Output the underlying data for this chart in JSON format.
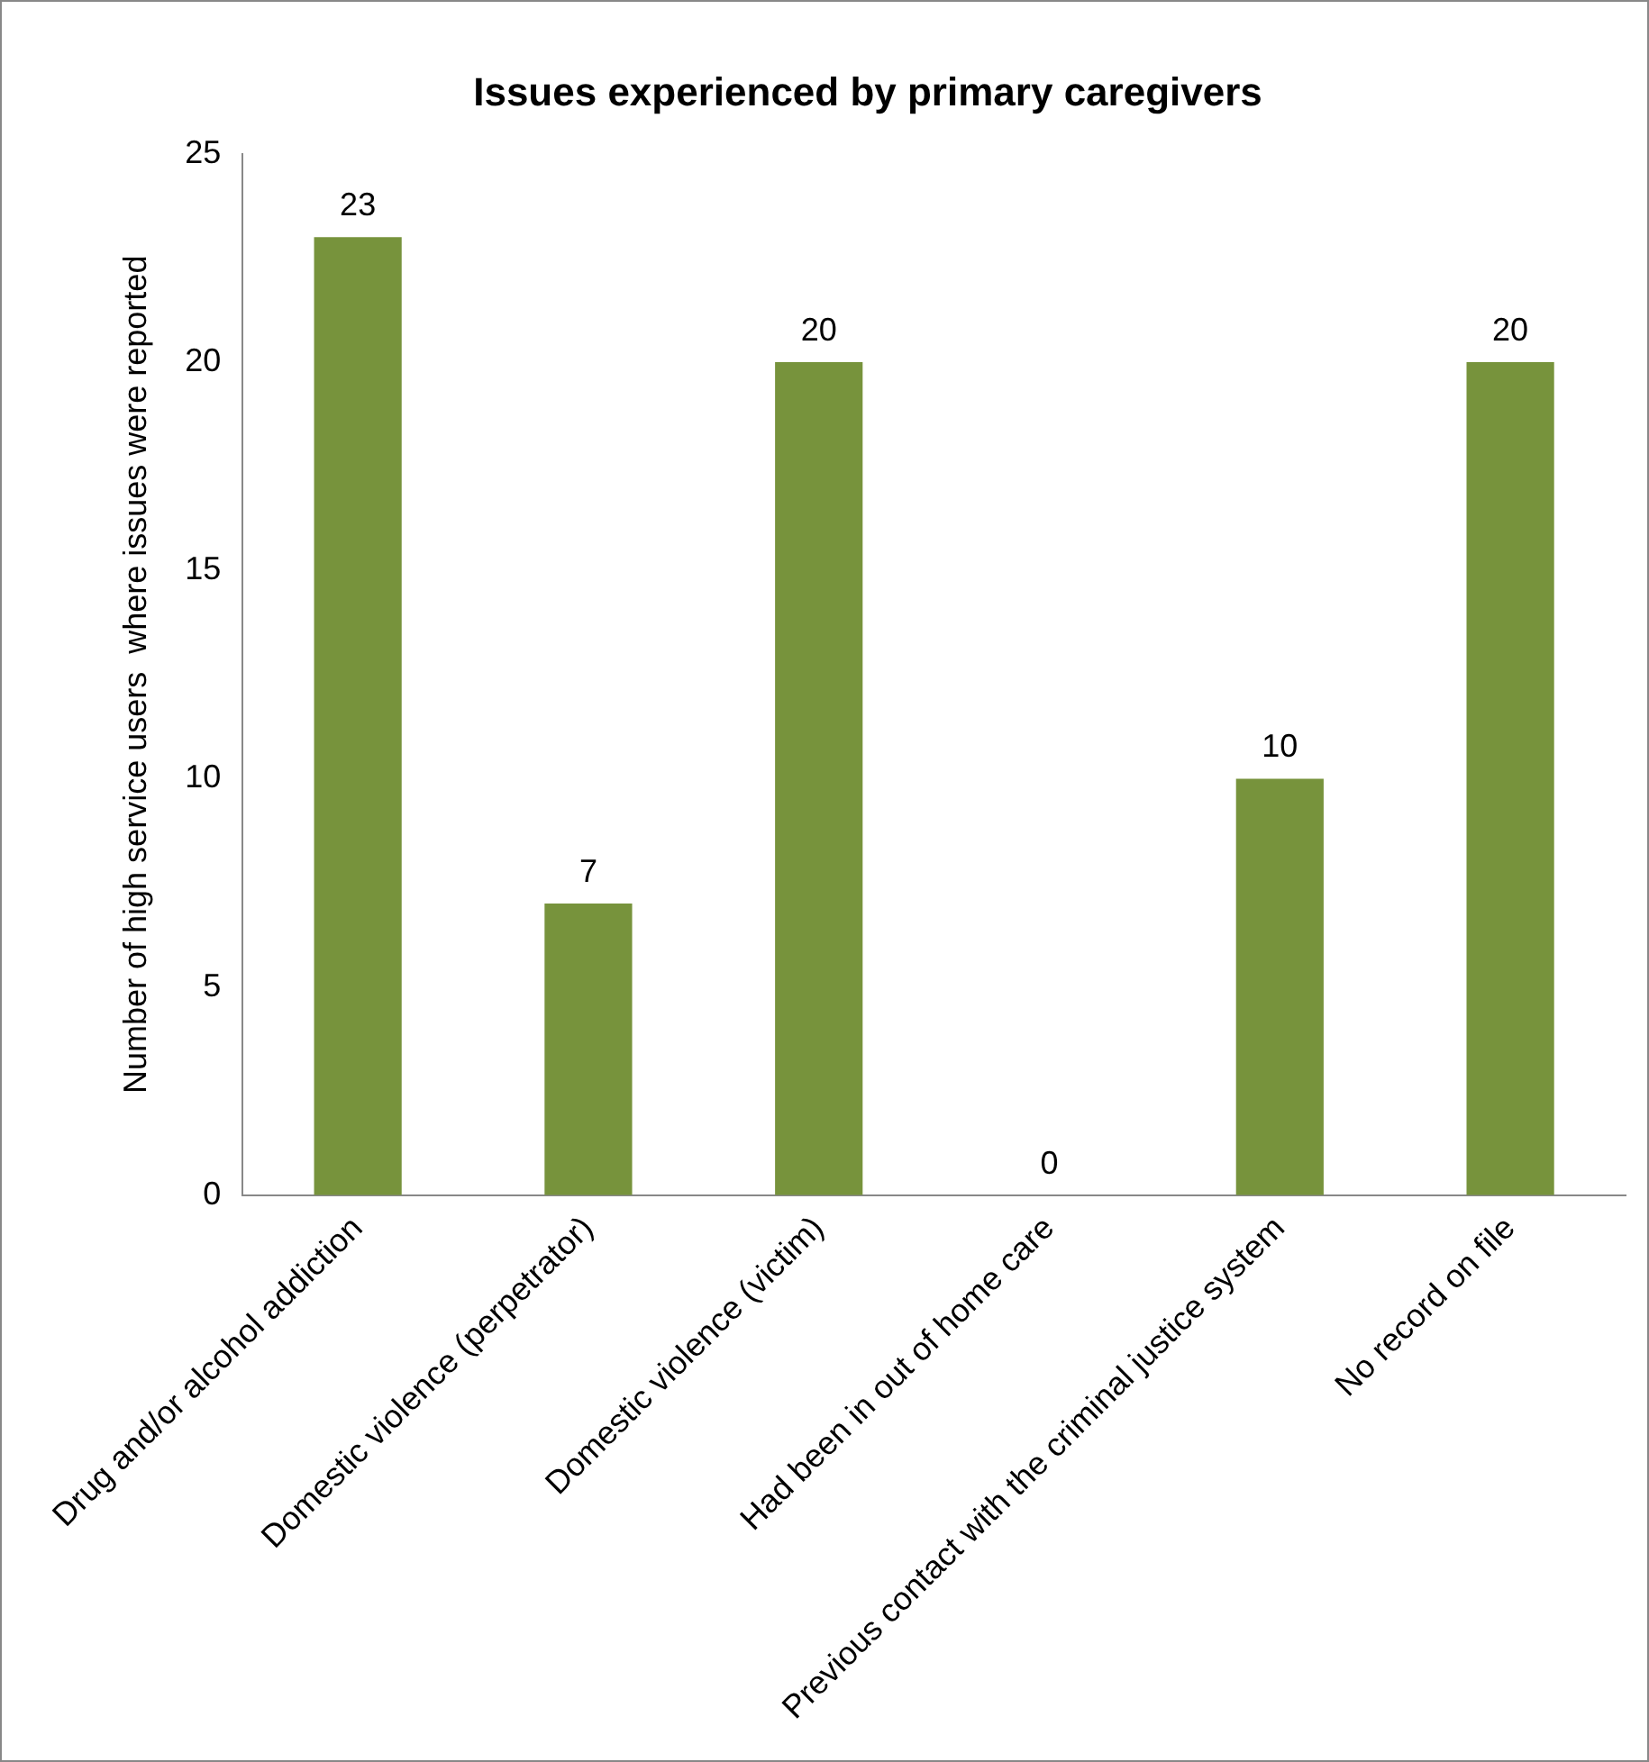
{
  "chart_data": {
    "type": "bar",
    "title": "Issues experienced by primary caregivers",
    "ylabel": "Number of high service users  where issues were reported",
    "categories": [
      "Drug and/or alcohol addiction",
      "Domestic violence (perpetrator)",
      "Domestic violence (victim)",
      "Had been in out of home care",
      "Previous contact with the criminal justice system",
      "No record on file"
    ],
    "values": [
      23,
      7,
      20,
      0,
      10,
      20
    ],
    "color": "#77933c",
    "ylim": [
      0,
      25
    ],
    "yticks": [
      0,
      5,
      10,
      15,
      20,
      25
    ],
    "grid": false,
    "data_labels": true,
    "legend": false
  }
}
